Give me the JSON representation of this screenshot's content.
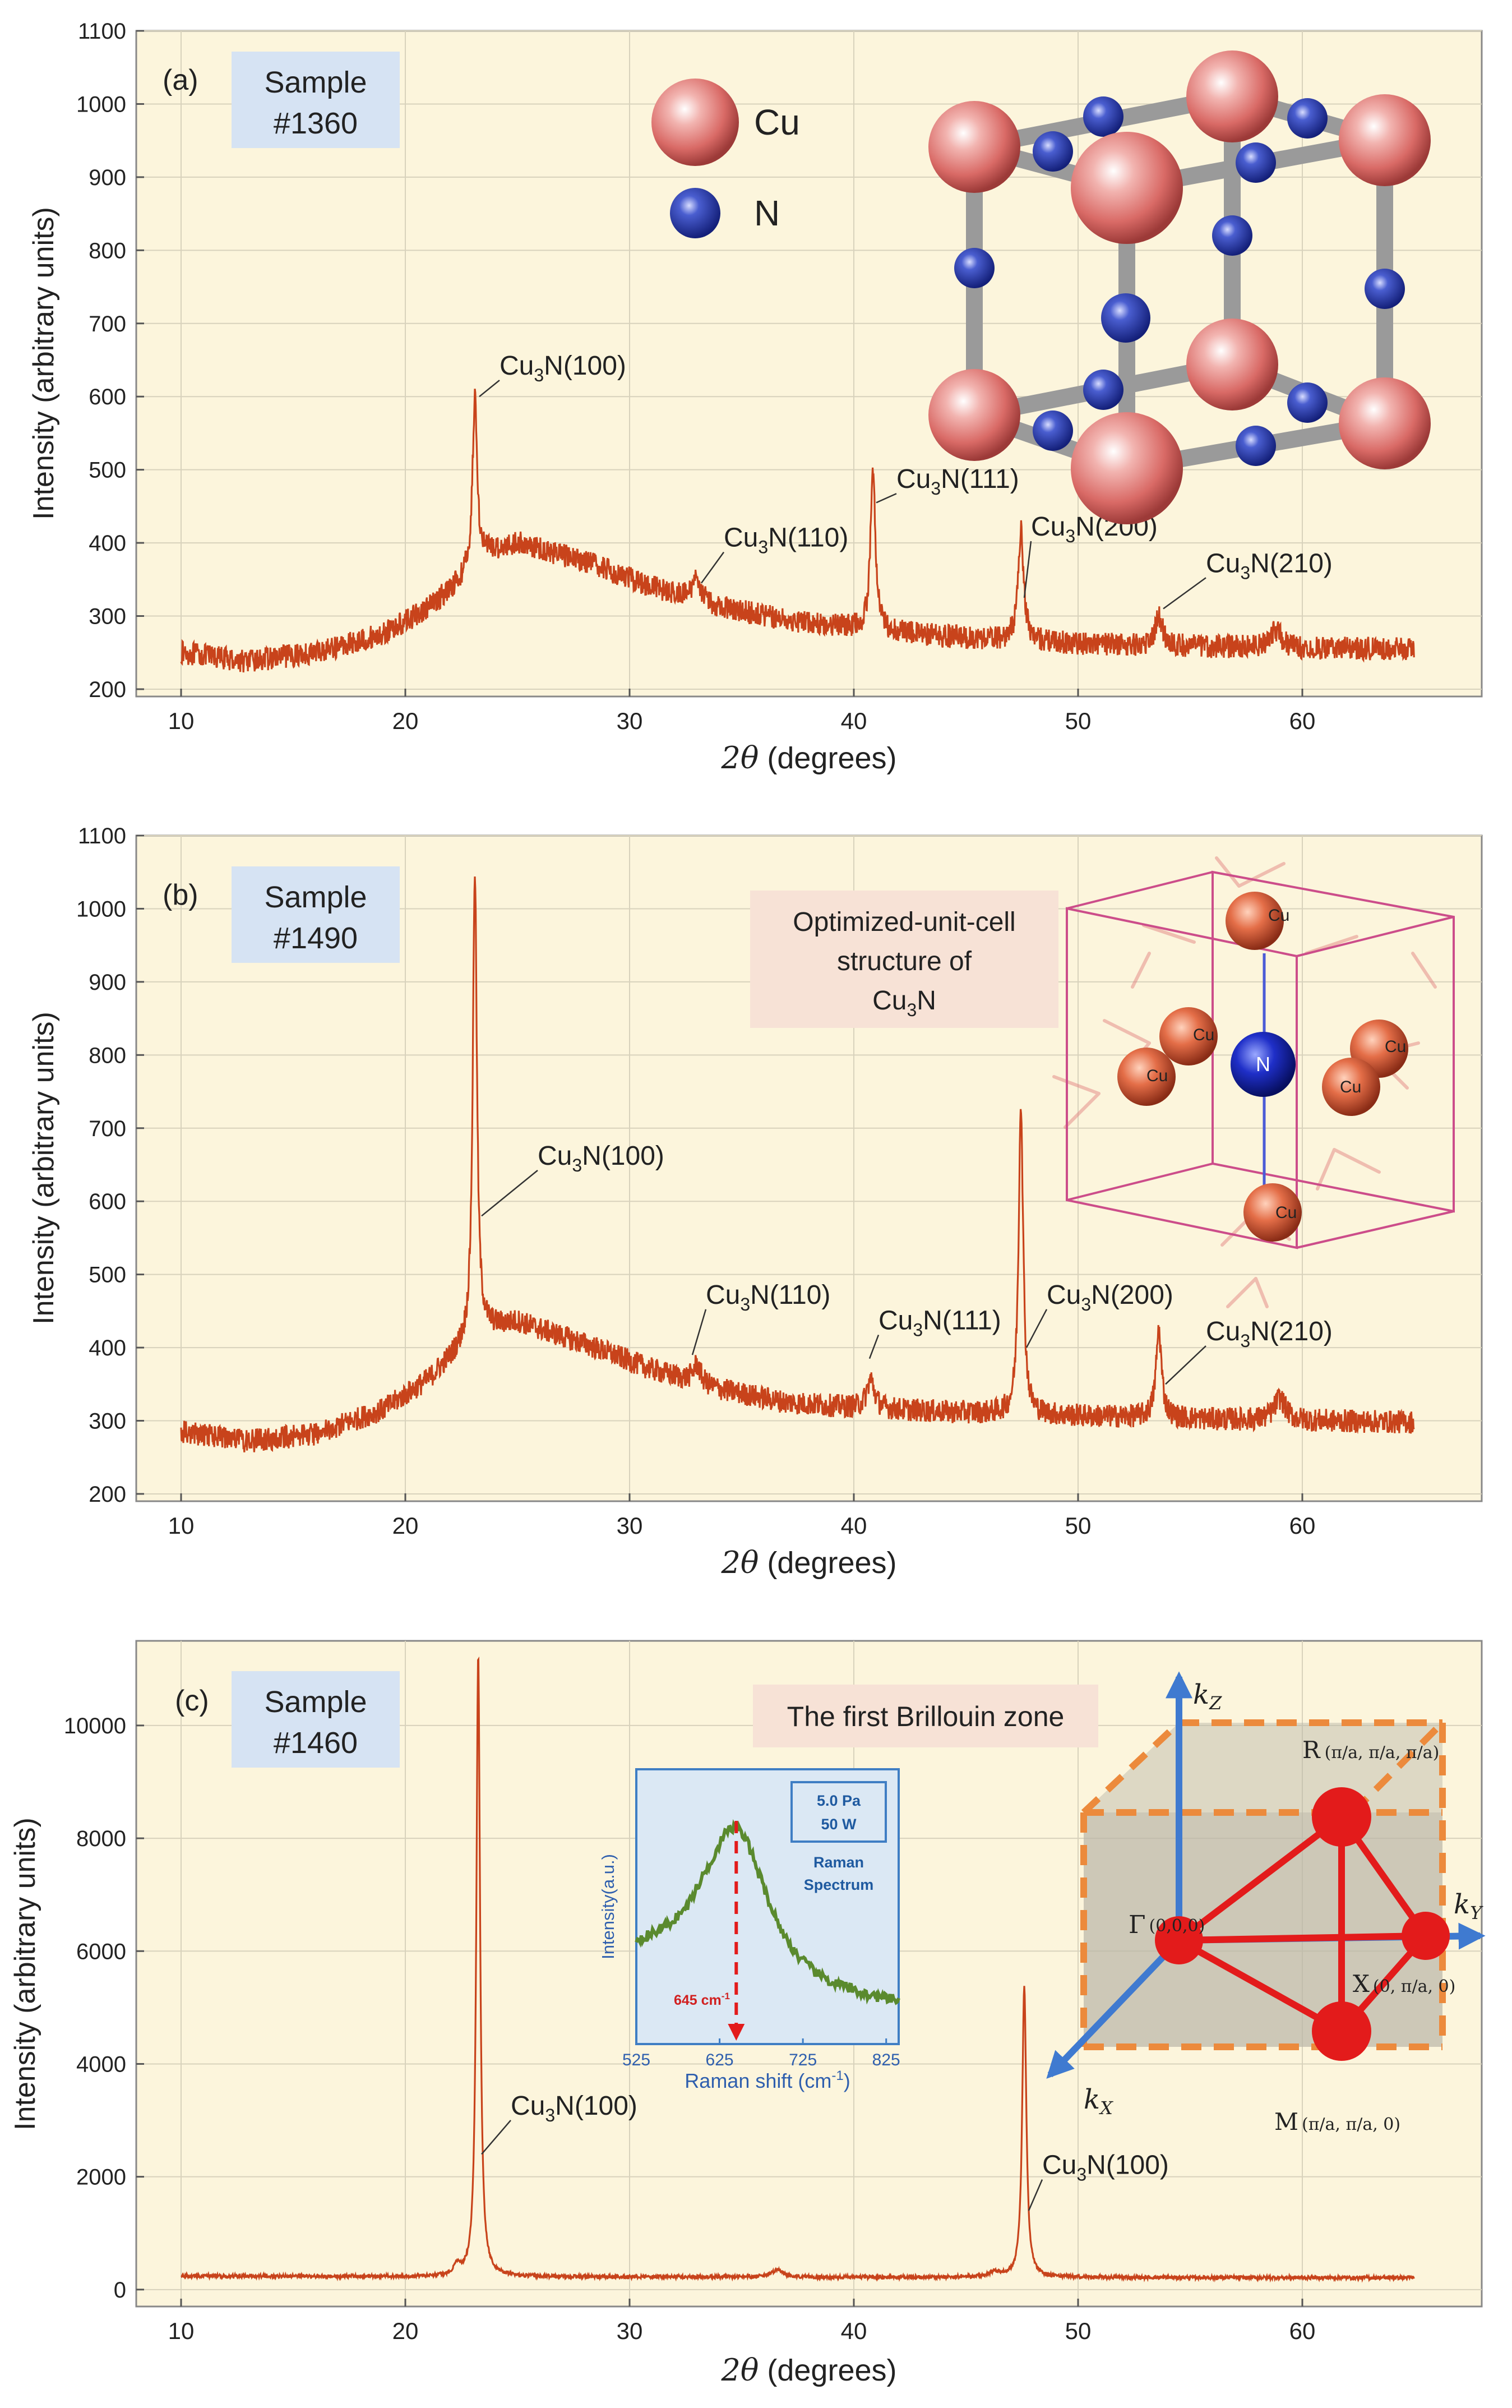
{
  "colors": {
    "plot_bg": "#fcf5dc",
    "trace": "#c8431b",
    "sample_box": "#d6e3f3",
    "note_box": "#f7e2d6",
    "axis": "#555555",
    "grid": "#d8d2bc",
    "cu": "#d86a68",
    "n": "#2a3ea8",
    "bz_red": "#e31b1b",
    "bz_orange": "#ec8a3c",
    "bz_blue": "#3f7ad0",
    "raman_bg": "#dbe8f4",
    "raman_line": "#5a8a2e",
    "raman_border": "#3f7ec4"
  },
  "chart_data": [
    {
      "id": "a",
      "type": "line",
      "panel_label": "(a)",
      "sample_line1": "Sample",
      "sample_line2": "#1360",
      "xlabel_var": "2θ",
      "xlabel_unit": " (degrees)",
      "ylabel": "Intensity (arbitrary units)",
      "xlim": [
        8,
        68
      ],
      "ylim": [
        190,
        1100
      ],
      "xticks": [
        10,
        20,
        30,
        40,
        50,
        60
      ],
      "yticks": [
        200,
        300,
        400,
        500,
        600,
        700,
        800,
        900,
        1000,
        1100
      ],
      "baseline": [
        [
          10,
          250
        ],
        [
          13,
          238
        ],
        [
          16,
          250
        ],
        [
          19,
          275
        ],
        [
          21,
          310
        ],
        [
          22.5,
          350
        ],
        [
          23.5,
          385
        ],
        [
          25,
          400
        ],
        [
          28,
          375
        ],
        [
          31,
          340
        ],
        [
          34,
          312
        ],
        [
          37,
          295
        ],
        [
          40,
          283
        ],
        [
          44,
          272
        ],
        [
          48,
          265
        ],
        [
          52,
          260
        ],
        [
          56,
          258
        ],
        [
          60,
          256
        ],
        [
          65,
          255
        ]
      ],
      "noise": 16,
      "peaks": [
        [
          23.1,
          230,
          0.12
        ],
        [
          33.0,
          35,
          0.2
        ],
        [
          40.85,
          220,
          0.13
        ],
        [
          47.45,
          150,
          0.15
        ],
        [
          53.6,
          40,
          0.2
        ],
        [
          58.8,
          25,
          0.3
        ]
      ],
      "annotations": [
        {
          "base": "Cu",
          "sub": "3",
          "rest": "N(100)",
          "x": 23.3,
          "y": 600,
          "tx": 24.2,
          "ty": 630
        },
        {
          "base": "Cu",
          "sub": "3",
          "rest": "N(110)",
          "x": 33.2,
          "y": 345,
          "tx": 34.2,
          "ty": 395
        },
        {
          "base": "Cu",
          "sub": "3",
          "rest": "N(111)",
          "x": 41.0,
          "y": 455,
          "tx": 41.9,
          "ty": 475
        },
        {
          "base": "Cu",
          "sub": "3",
          "rest": "N(200)",
          "x": 47.6,
          "y": 325,
          "tx": 47.9,
          "ty": 410
        },
        {
          "base": "Cu",
          "sub": "3",
          "rest": "N(210)",
          "x": 53.8,
          "y": 310,
          "tx": 55.7,
          "ty": 360
        }
      ]
    },
    {
      "id": "b",
      "type": "line",
      "panel_label": "(b)",
      "sample_line1": "Sample",
      "sample_line2": "#1490",
      "xlabel_var": "2θ",
      "xlabel_unit": " (degrees)",
      "ylabel": "Intensity (arbitrary units)",
      "xlim": [
        8,
        68
      ],
      "ylim": [
        190,
        1100
      ],
      "xticks": [
        10,
        20,
        30,
        40,
        50,
        60
      ],
      "yticks": [
        200,
        300,
        400,
        500,
        600,
        700,
        800,
        900,
        1000,
        1100
      ],
      "baseline": [
        [
          10,
          285
        ],
        [
          13,
          272
        ],
        [
          16,
          282
        ],
        [
          19,
          315
        ],
        [
          21,
          355
        ],
        [
          22.5,
          400
        ],
        [
          23.5,
          425
        ],
        [
          25,
          435
        ],
        [
          28,
          405
        ],
        [
          31,
          370
        ],
        [
          34,
          343
        ],
        [
          37,
          325
        ],
        [
          40,
          318
        ],
        [
          44,
          312
        ],
        [
          48,
          308
        ],
        [
          52,
          305
        ],
        [
          56,
          302
        ],
        [
          60,
          300
        ],
        [
          65,
          298
        ]
      ],
      "noise": 16,
      "peaks": [
        [
          23.1,
          640,
          0.11
        ],
        [
          33.0,
          25,
          0.2
        ],
        [
          40.75,
          40,
          0.2
        ],
        [
          47.45,
          430,
          0.12
        ],
        [
          53.6,
          120,
          0.15
        ],
        [
          59.0,
          30,
          0.3
        ]
      ],
      "annotations": [
        {
          "base": "Cu",
          "sub": "3",
          "rest": "N(100)",
          "x": 23.4,
          "y": 580,
          "tx": 25.9,
          "ty": 650
        },
        {
          "base": "Cu",
          "sub": "3",
          "rest": "N(110)",
          "x": 32.8,
          "y": 390,
          "tx": 33.4,
          "ty": 460
        },
        {
          "base": "Cu",
          "sub": "3",
          "rest": "N(111)",
          "x": 40.7,
          "y": 385,
          "tx": 41.1,
          "ty": 425
        },
        {
          "base": "Cu",
          "sub": "3",
          "rest": "N(200)",
          "x": 47.7,
          "y": 400,
          "tx": 48.6,
          "ty": 460
        },
        {
          "base": "Cu",
          "sub": "3",
          "rest": "N(210)",
          "x": 53.9,
          "y": 350,
          "tx": 55.7,
          "ty": 410
        }
      ]
    },
    {
      "id": "c",
      "type": "line",
      "panel_label": "(c)",
      "sample_line1": "Sample",
      "sample_line2": "#1460",
      "xlabel_var": "2θ",
      "xlabel_unit": " (degrees)",
      "ylabel": "Intensity (arbitrary units)",
      "xlim": [
        8,
        68
      ],
      "ylim": [
        -300,
        11500
      ],
      "xticks": [
        10,
        20,
        30,
        40,
        50,
        60
      ],
      "yticks": [
        0,
        2000,
        4000,
        6000,
        8000,
        10000
      ],
      "baseline": [
        [
          10,
          240
        ],
        [
          20,
          230
        ],
        [
          30,
          225
        ],
        [
          40,
          220
        ],
        [
          50,
          215
        ],
        [
          65,
          210
        ]
      ],
      "noise": 30,
      "peaks": [
        [
          23.25,
          11050,
          0.1
        ],
        [
          22.3,
          180,
          0.15
        ],
        [
          36.6,
          130,
          0.3
        ],
        [
          47.6,
          5150,
          0.11
        ],
        [
          46.3,
          90,
          0.3
        ]
      ],
      "annotations": [
        {
          "base": "Cu",
          "sub": "3",
          "rest": "N(100)",
          "x": 23.4,
          "y": 2400,
          "tx": 24.7,
          "ty": 3100
        },
        {
          "base": "Cu",
          "sub": "3",
          "rest": "N(100)",
          "x": 47.8,
          "y": 1400,
          "tx": 48.4,
          "ty": 2050
        }
      ]
    }
  ],
  "inset_a": {
    "cu_label": "Cu",
    "n_label": "N"
  },
  "inset_b": {
    "note_line1": "Optimized-unit-cell",
    "note_line2": "structure of",
    "note_base": "Cu",
    "note_sub": "3",
    "note_rest": "N",
    "atom_cu": "Cu",
    "atom_n": "N"
  },
  "inset_c": {
    "note": "The first Brillouin zone",
    "raman": {
      "legend_line1": "5.0 Pa",
      "legend_line2": "50 W",
      "title_line1": "Raman",
      "title_line2": "Spectrum",
      "ylabel": "Intensity(a.u.)",
      "xlabel": "Raman shift (cm",
      "xlabel_sup": "-1",
      "xlabel_end": ")",
      "peak_label": "645 cm",
      "peak_label_sup": "-1",
      "peak_x": 645,
      "xlim": [
        525,
        840
      ],
      "xticks": [
        525,
        625,
        725,
        825
      ],
      "profile": [
        [
          525,
          0.42
        ],
        [
          545,
          0.45
        ],
        [
          565,
          0.5
        ],
        [
          585,
          0.58
        ],
        [
          600,
          0.7
        ],
        [
          615,
          0.82
        ],
        [
          630,
          0.95
        ],
        [
          645,
          1.0
        ],
        [
          660,
          0.9
        ],
        [
          675,
          0.72
        ],
        [
          690,
          0.55
        ],
        [
          705,
          0.42
        ],
        [
          720,
          0.33
        ],
        [
          740,
          0.25
        ],
        [
          760,
          0.2
        ],
        [
          780,
          0.17
        ],
        [
          800,
          0.14
        ],
        [
          820,
          0.12
        ],
        [
          840,
          0.11
        ]
      ]
    },
    "kx": "k",
    "kx_sub": "X",
    "ky": "k",
    "ky_sub": "Y",
    "kz": "k",
    "kz_sub": "Z",
    "gamma_label": "Γ",
    "gamma_coord": "(0,0,0)",
    "r_label": "R",
    "r_coord": "(π/a, π/a, π/a)",
    "x_label": "X",
    "x_coord": "(0, π/a, 0)",
    "m_label": "M",
    "m_coord": "(π/a, π/a, 0)"
  }
}
